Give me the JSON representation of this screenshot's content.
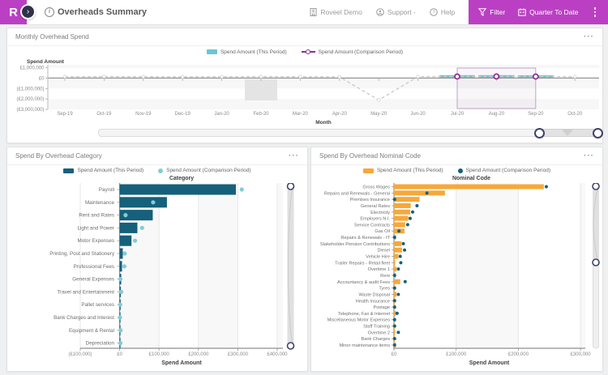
{
  "header": {
    "logo_letter": "R",
    "page_title": "Overheads Summary",
    "account": "Roveel Demo",
    "support_label": "Support -",
    "help_label": "Help",
    "filter_label": "Filter",
    "period_label": "Quarter To Date"
  },
  "legend": {
    "this_period": "Spend Amount (This Period)",
    "comparison": "Spend Amount (Comparison Period)"
  },
  "panels": {
    "monthly": {
      "title": "Monthly Overhead Spend",
      "menu_icon": "···"
    },
    "category": {
      "title": "Spend By Overhead Category",
      "menu_icon": "···"
    },
    "nominal": {
      "title": "Spend By Overhead Nominal Code",
      "menu_icon": "···"
    }
  },
  "colors": {
    "accent": "#bb3fc3",
    "bar_teal": "#6cc5d2",
    "bar_dark_teal": "#15607a",
    "bar_orange": "#f7a83a",
    "comparison_dot_light": "#82ccd8",
    "marker_purple": "#8c2e8e",
    "handle_navy": "#3e436b"
  },
  "chart_data": [
    {
      "type": "bar",
      "title": "Monthly Overhead Spend",
      "x": [
        "Sep-19",
        "Oct-19",
        "Nov-19",
        "Dec-19",
        "Jan-20",
        "Feb-20",
        "Mar-20",
        "Apr-20",
        "May-20",
        "Jun-20",
        "Jul-20",
        "Aug-20",
        "Sep-20",
        "Oct-20"
      ],
      "xlabel": "Month",
      "ylabel": "Spend Amount",
      "ylim": [
        -3300000,
        1300000
      ],
      "yticks": [
        {
          "label": "£1,000,000",
          "value": 1000000
        },
        {
          "label": "£0",
          "value": 0
        },
        {
          "label": "(£1,000,000)",
          "value": -1000000
        },
        {
          "label": "(£2,000,000)",
          "value": -2000000
        },
        {
          "label": "(£3,000,000)",
          "value": -3000000
        }
      ],
      "series": [
        {
          "name": "Spend Amount (This Period)",
          "type": "bar",
          "color": "#6cc5d2",
          "values": [
            0,
            0,
            0,
            0,
            0,
            0,
            0,
            0,
            0,
            0,
            280000,
            280000,
            270000,
            0
          ]
        },
        {
          "name": "Spend Amount (Comparison Period)",
          "type": "line",
          "line_style": "dashed",
          "color": "#cccccc",
          "marker_color": "#8c2e8e",
          "values": [
            130000,
            140000,
            130000,
            120000,
            130000,
            140000,
            130000,
            110000,
            -2100000,
            140000,
            150000,
            155000,
            150000,
            135000
          ]
        }
      ],
      "highlighted_markers": [
        "Jul-20",
        "Aug-20",
        "Sep-20"
      ],
      "selection": {
        "from": "Jul-20",
        "to": "Sep-20"
      },
      "highlight_band": {
        "x": "Feb-20",
        "value_from": 0,
        "value_to": -2200000
      }
    },
    {
      "type": "bar",
      "orientation": "horizontal",
      "title": "Spend By Overhead Category",
      "ylabel": "Category",
      "xlabel": "Spend Amount",
      "xlim": [
        -100000,
        415000
      ],
      "xticks": [
        {
          "label": "(£100,000)",
          "value": -100000
        },
        {
          "label": "£0",
          "value": 0
        },
        {
          "label": "£100,000",
          "value": 100000
        },
        {
          "label": "£200,000",
          "value": 200000
        },
        {
          "label": "£300,000",
          "value": 300000
        },
        {
          "label": "£400,000",
          "value": 400000
        }
      ],
      "categories": [
        "Payroll",
        "Maintenance",
        "Rent and Rates",
        "Light and Power",
        "Motor Expenses",
        "Printing, Post and Stationery",
        "Professional Fees",
        "General Expenses",
        "Travel and Entertainment",
        "Pallet services",
        "Bank Charges and Interest",
        "Equipment & Rental",
        "Depreciation"
      ],
      "series": [
        {
          "name": "Spend Amount (This Period)",
          "color": "#15607a",
          "values": [
            295000,
            120000,
            84000,
            45000,
            30000,
            8000,
            6000,
            4000,
            3000,
            2500,
            1500,
            1500,
            1000
          ]
        },
        {
          "name": "Spend Amount (Comparison Period)",
          "color": "#82ccd8",
          "marker": "circle",
          "values": [
            310000,
            85000,
            15000,
            57000,
            39000,
            13000,
            12000,
            2000,
            4000,
            1500,
            1000,
            2500,
            2000
          ]
        }
      ]
    },
    {
      "type": "bar",
      "orientation": "horizontal",
      "title": "Spend By Overhead Nominal Code",
      "ylabel": "Nominal Code",
      "xlabel": "Spend Amount",
      "xlim": [
        0,
        310000
      ],
      "xticks": [
        {
          "label": "£0",
          "value": 0
        },
        {
          "label": "£100,000",
          "value": 100000
        },
        {
          "label": "£200,000",
          "value": 200000
        },
        {
          "label": "£300,000",
          "value": 300000
        }
      ],
      "categories": [
        "Gross Wages",
        "Repairs and Renewals - General",
        "Premises Insurance",
        "General Rates",
        "Electricity",
        "Employers N.I.",
        "Service Contracts",
        "Gas Oil",
        "Repairs & Renewals - IT",
        "Stakeholder Pension Contributions",
        "Diesel",
        "Vehicle Hire",
        "Trailer Repairs - Retail fleet",
        "Overtime 1",
        "Rent",
        "Accountancy & audit Fees",
        "Tyres",
        "Waste Disposal",
        "Health Insurance",
        "Postage",
        "Telephone, Fax & Internet",
        "Miscellaneous Motor Expenses",
        "Staff Training",
        "Overtime 2",
        "Bank Charges",
        "Minor maintenance items"
      ],
      "series": [
        {
          "name": "Spend Amount (This Period)",
          "color": "#f7a83a",
          "values": [
            241000,
            82000,
            41000,
            27000,
            26000,
            23000,
            18000,
            17000,
            3000,
            12000,
            13000,
            7000,
            2000,
            4000,
            3000,
            10000,
            2000,
            4000,
            2000,
            2000,
            3000,
            2000,
            2000,
            2000,
            1000,
            3000
          ]
        },
        {
          "name": "Spend Amount (Comparison Period)",
          "color": "#15607a",
          "marker": "circle",
          "values": [
            245000,
            53000,
            1000,
            37000,
            30000,
            26000,
            22000,
            8000,
            1000,
            15000,
            17000,
            10000,
            11000,
            7000,
            1000,
            18000,
            1000,
            7000,
            1000,
            1000,
            5000,
            1000,
            1000,
            7000,
            1000,
            1000
          ]
        }
      ]
    }
  ]
}
